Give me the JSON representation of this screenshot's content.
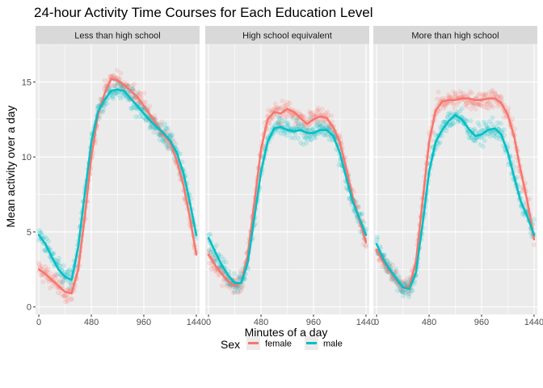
{
  "chart_data": {
    "type": "scatter",
    "title": "24-hour Activity Time Courses for Each Education Level",
    "xlabel": "Minutes of a day",
    "ylabel": "Mean activity over a day",
    "xlim": [
      -30,
      1470
    ],
    "ylim": [
      -0.5,
      17.5
    ],
    "x_ticks": [
      0,
      480,
      960,
      1440
    ],
    "y_ticks": [
      0,
      5,
      10,
      15
    ],
    "grid": true,
    "legend": {
      "title": "Sex",
      "placement": "bottom"
    },
    "colors": {
      "female": "#F8766D",
      "male": "#00BFC4"
    },
    "panels": [
      {
        "strip": "Less than high school",
        "series": [
          {
            "name": "female",
            "smooth": {
              "x": [
                0,
                60,
                120,
                180,
                240,
                300,
                360,
                420,
                480,
                540,
                600,
                660,
                720,
                780,
                840,
                900,
                960,
                1020,
                1080,
                1140,
                1200,
                1260,
                1320,
                1380,
                1440
              ],
              "y": [
                2.5,
                2.2,
                1.8,
                1.4,
                1.0,
                0.9,
                2.5,
                6.0,
                10.0,
                12.8,
                14.2,
                15.2,
                15.1,
                14.8,
                14.4,
                14.0,
                13.4,
                12.8,
                12.1,
                11.5,
                11.0,
                9.8,
                8.2,
                6.0,
                3.5
              ]
            }
          },
          {
            "name": "male",
            "smooth": {
              "x": [
                0,
                60,
                120,
                180,
                240,
                300,
                360,
                420,
                480,
                540,
                600,
                660,
                720,
                780,
                840,
                900,
                960,
                1020,
                1080,
                1140,
                1200,
                1260,
                1320,
                1380,
                1440
              ],
              "y": [
                4.8,
                4.2,
                3.3,
                2.5,
                2.0,
                1.8,
                4.0,
                7.5,
                11.0,
                13.0,
                13.8,
                14.4,
                14.5,
                14.4,
                13.9,
                13.4,
                12.9,
                12.4,
                12.0,
                11.6,
                11.1,
                10.3,
                9.0,
                7.0,
                4.8
              ]
            }
          }
        ]
      },
      {
        "strip": "High school equivalent",
        "series": [
          {
            "name": "female",
            "smooth": {
              "x": [
                0,
                60,
                120,
                180,
                240,
                300,
                360,
                420,
                480,
                540,
                600,
                660,
                720,
                780,
                840,
                900,
                960,
                1020,
                1080,
                1140,
                1200,
                1260,
                1320,
                1380,
                1440
              ],
              "y": [
                3.5,
                2.8,
                2.2,
                1.7,
                1.4,
                1.6,
                3.5,
                7.0,
                10.5,
                12.5,
                13.0,
                12.9,
                13.2,
                13.0,
                12.6,
                12.2,
                12.5,
                12.7,
                12.6,
                12.0,
                11.0,
                9.2,
                7.3,
                5.8,
                4.3
              ]
            }
          },
          {
            "name": "male",
            "smooth": {
              "x": [
                0,
                60,
                120,
                180,
                240,
                300,
                360,
                420,
                480,
                540,
                600,
                660,
                720,
                780,
                840,
                900,
                960,
                1020,
                1080,
                1140,
                1200,
                1260,
                1320,
                1380,
                1440
              ],
              "y": [
                4.6,
                3.7,
                2.8,
                2.1,
                1.6,
                1.6,
                3.0,
                6.0,
                9.0,
                11.0,
                11.9,
                12.0,
                11.8,
                11.7,
                11.8,
                11.6,
                11.6,
                11.8,
                11.8,
                11.4,
                10.3,
                8.6,
                7.0,
                5.9,
                4.8
              ]
            }
          }
        ]
      },
      {
        "strip": "More than high school",
        "series": [
          {
            "name": "female",
            "smooth": {
              "x": [
                0,
                60,
                120,
                180,
                240,
                300,
                360,
                420,
                480,
                540,
                600,
                660,
                720,
                780,
                840,
                900,
                960,
                1020,
                1080,
                1140,
                1200,
                1260,
                1320,
                1380,
                1440
              ],
              "y": [
                3.8,
                3.0,
                2.4,
                1.8,
                1.3,
                1.4,
                3.0,
                7.0,
                11.0,
                13.1,
                13.7,
                13.8,
                13.8,
                13.9,
                13.9,
                13.8,
                13.8,
                13.9,
                13.9,
                13.6,
                12.8,
                11.3,
                9.0,
                7.0,
                4.5
              ]
            }
          },
          {
            "name": "male",
            "smooth": {
              "x": [
                0,
                60,
                120,
                180,
                240,
                300,
                360,
                420,
                480,
                540,
                600,
                660,
                720,
                780,
                840,
                900,
                960,
                1020,
                1080,
                1140,
                1200,
                1260,
                1320,
                1380,
                1440
              ],
              "y": [
                4.2,
                3.2,
                2.5,
                1.9,
                1.3,
                1.2,
                2.3,
                5.5,
                9.0,
                11.0,
                11.8,
                12.4,
                12.8,
                12.5,
                11.9,
                11.4,
                11.5,
                11.8,
                11.9,
                11.5,
                10.3,
                8.6,
                7.0,
                6.0,
                4.8
              ]
            }
          }
        ]
      }
    ]
  }
}
